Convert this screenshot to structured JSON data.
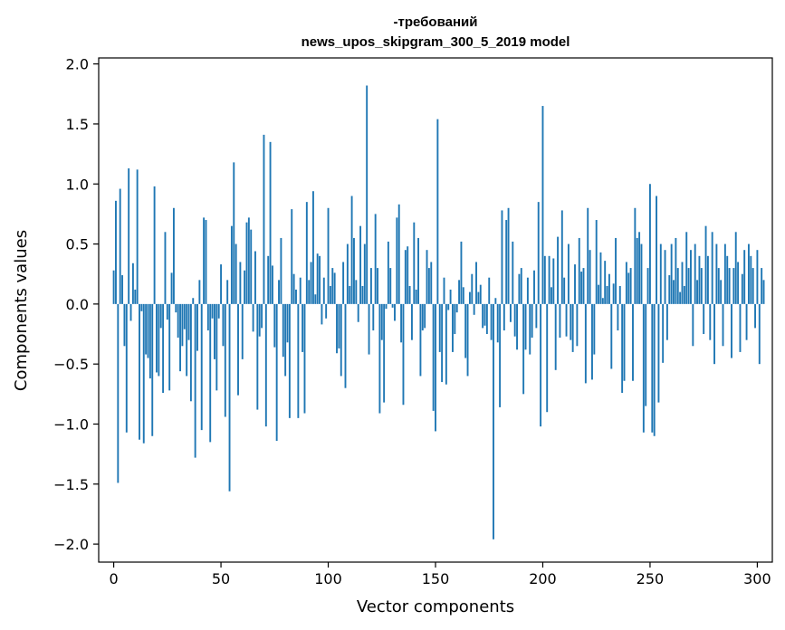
{
  "chart_data": {
    "type": "bar",
    "title": "-требований\nnews_upos_skipgram_300_5_2019 model",
    "xlabel": "Vector components",
    "ylabel": "Components values",
    "xlim": [
      -7,
      307
    ],
    "ylim": [
      -2.15,
      2.05
    ],
    "xticks": [
      0,
      50,
      100,
      150,
      200,
      250,
      300
    ],
    "xtick_labels": [
      "0",
      "50",
      "100",
      "150",
      "200",
      "250",
      "300"
    ],
    "yticks": [
      2.0,
      1.5,
      1.0,
      0.5,
      0.0,
      -0.5,
      -1.0,
      -1.5,
      -2.0
    ],
    "ytick_labels": [
      "2.0",
      "1.5",
      "1.0",
      "0.5",
      "0.0",
      "−0.5",
      "−1.0",
      "−1.5",
      "−2.0"
    ],
    "bar_color": "#1f77b4",
    "grid": false,
    "series": [
      {
        "values": [
          0.28,
          0.86,
          -1.49,
          0.96,
          0.24,
          -0.35,
          -1.07,
          1.13,
          -0.14,
          0.34,
          0.12,
          1.12,
          -1.13,
          -0.06,
          -1.16,
          -0.42,
          -0.45,
          -0.62,
          -1.1,
          0.98,
          -0.57,
          -0.6,
          -0.2,
          -0.74,
          0.6,
          -0.13,
          -0.72,
          0.26,
          0.8,
          -0.07,
          -0.28,
          -0.56,
          -0.35,
          -0.21,
          -0.6,
          -0.3,
          -0.81,
          0.05,
          -1.28,
          -0.39,
          0.2,
          -1.05,
          0.72,
          0.7,
          -0.22,
          -1.15,
          -0.12,
          -0.46,
          -0.72,
          -0.12,
          0.33,
          -0.35,
          -0.94,
          0.2,
          -1.56,
          0.65,
          1.18,
          0.5,
          -0.76,
          0.35,
          -0.46,
          0.28,
          0.68,
          0.72,
          0.62,
          -0.23,
          0.44,
          -0.88,
          -0.27,
          -0.2,
          1.41,
          -1.02,
          0.4,
          1.35,
          0.32,
          -0.36,
          -1.14,
          0.2,
          0.55,
          -0.44,
          -0.6,
          -0.32,
          -0.95,
          0.79,
          0.25,
          0.12,
          -0.95,
          0.22,
          -0.4,
          -0.91,
          0.85,
          0.2,
          0.35,
          0.94,
          0.08,
          0.42,
          0.4,
          -0.17,
          0.22,
          -0.12,
          0.8,
          0.15,
          0.3,
          0.26,
          -0.41,
          -0.37,
          -0.6,
          0.35,
          -0.7,
          0.5,
          0.15,
          0.9,
          0.55,
          0.2,
          -0.15,
          0.65,
          0.15,
          0.5,
          1.82,
          -0.42,
          0.3,
          -0.22,
          0.75,
          0.3,
          -0.91,
          -0.3,
          -0.82,
          -0.04,
          0.52,
          0.3,
          -0.03,
          -0.14,
          0.72,
          0.83,
          -0.32,
          -0.84,
          0.45,
          0.48,
          0.15,
          -0.3,
          0.68,
          0.12,
          0.55,
          -0.6,
          -0.22,
          -0.2,
          0.45,
          0.3,
          0.35,
          -0.89,
          -1.06,
          1.54,
          -0.4,
          -0.65,
          0.22,
          -0.67,
          -0.05,
          0.12,
          -0.4,
          -0.25,
          -0.07,
          0.2,
          0.52,
          0.14,
          -0.45,
          -0.6,
          0.1,
          0.25,
          -0.09,
          0.35,
          0.1,
          0.16,
          -0.2,
          -0.18,
          -0.25,
          0.22,
          -0.3,
          -1.96,
          0.05,
          -0.32,
          -0.86,
          0.78,
          -0.22,
          0.7,
          0.8,
          -0.15,
          0.52,
          -0.27,
          -0.38,
          0.25,
          0.3,
          -0.75,
          -0.38,
          0.22,
          -0.42,
          -0.28,
          0.28,
          -0.2,
          0.85,
          -1.02,
          1.65,
          0.4,
          -0.9,
          0.4,
          0.14,
          0.38,
          -0.55,
          0.56,
          -0.28,
          0.78,
          0.22,
          -0.27,
          0.5,
          -0.3,
          -0.4,
          0.33,
          -0.35,
          0.55,
          0.27,
          0.3,
          -0.66,
          0.8,
          0.45,
          -0.63,
          -0.42,
          0.7,
          0.16,
          0.43,
          0.05,
          0.36,
          0.15,
          0.25,
          -0.54,
          0.17,
          0.55,
          -0.22,
          0.15,
          -0.74,
          -0.64,
          0.35,
          0.26,
          0.3,
          -0.64,
          0.8,
          0.55,
          0.6,
          0.5,
          -1.07,
          -0.85,
          0.3,
          1.0,
          -1.07,
          -1.1,
          0.9,
          -0.82,
          0.5,
          -0.49,
          0.45,
          -0.3,
          0.24,
          0.5,
          0.2,
          0.55,
          0.3,
          0.1,
          0.35,
          0.15,
          0.6,
          0.3,
          0.45,
          -0.35,
          0.5,
          0.2,
          0.4,
          0.3,
          -0.25,
          0.65,
          0.4,
          -0.3,
          0.6,
          -0.5,
          0.5,
          0.3,
          0.2,
          -0.35,
          0.5,
          0.4,
          0.3,
          -0.45,
          0.3,
          0.6,
          0.35,
          -0.4,
          0.25,
          0.45,
          -0.3,
          0.5,
          0.4,
          0.3,
          -0.2,
          0.45,
          -0.5,
          0.3,
          0.2
        ]
      }
    ]
  }
}
